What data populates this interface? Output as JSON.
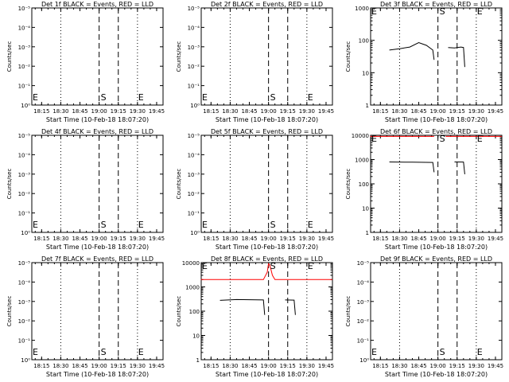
{
  "figure": {
    "xlabel": "Start Time (10-Feb-18 18:07:20)",
    "ylabel": "Counts/sec",
    "x_ticks": [
      "18:15",
      "18:30",
      "18:45",
      "19:00",
      "19:15",
      "19:30",
      "19:45"
    ],
    "line_labels": {
      "start": "S",
      "end": "E"
    },
    "colors": {
      "events": "#000000",
      "lld": "#ff0000",
      "background": "#ffffff"
    }
  },
  "chart_data": [
    {
      "type": "line",
      "title": "Det 1f BLACK = Events, RED = LLD",
      "xlabel": "Start Time (10-Feb-18 18:07:20)",
      "ylabel": "Counts/sec",
      "x_range": [
        "18:07",
        "19:50"
      ],
      "log_y": true,
      "empty": true,
      "yticks": [
        "10⁰",
        "10⁻¹",
        "10⁻²",
        "10⁻³",
        "10⁻⁴",
        "10⁻⁵"
      ],
      "markers": [
        "S",
        "E"
      ],
      "series": []
    },
    {
      "type": "line",
      "title": "Det 2f BLACK = Events, RED = LLD",
      "xlabel": "Start Time (10-Feb-18 18:07:20)",
      "ylabel": "Counts/sec",
      "x_range": [
        "18:07",
        "19:50"
      ],
      "log_y": true,
      "empty": true,
      "yticks": [
        "10⁰",
        "10⁻¹",
        "10⁻²",
        "10⁻³",
        "10⁻⁴",
        "10⁻⁵"
      ],
      "markers": [
        "S",
        "E"
      ],
      "series": []
    },
    {
      "type": "line",
      "title": "Det 3f BLACK = Events, RED = LLD",
      "xlabel": "Start Time (10-Feb-18 18:07:20)",
      "ylabel": "Counts/sec",
      "x_range": [
        "18:07",
        "19:50"
      ],
      "log_y": true,
      "ylim": [
        1,
        1000
      ],
      "empty": false,
      "yticks": [
        "1",
        "10",
        "100",
        "1000"
      ],
      "markers": [
        "S",
        "E"
      ],
      "series": [
        {
          "color": "#000000",
          "points": [
            [
              "18:22",
              50
            ],
            [
              "18:30",
              55
            ],
            [
              "18:38",
              62
            ],
            [
              "18:45",
              85
            ],
            [
              "18:51",
              70
            ],
            [
              "18:56",
              50
            ],
            [
              "18:57",
              25
            ]
          ]
        },
        {
          "color": "#000000",
          "points": [
            [
              "19:08",
              60
            ],
            [
              "19:13",
              58
            ],
            [
              "19:18",
              62
            ],
            [
              "19:20",
              60
            ],
            [
              "19:21",
              15
            ]
          ]
        }
      ]
    },
    {
      "type": "line",
      "title": "Det 4f BLACK = Events, RED = LLD",
      "xlabel": "Start Time (10-Feb-18 18:07:20)",
      "ylabel": "Counts/sec",
      "x_range": [
        "18:07",
        "19:50"
      ],
      "log_y": true,
      "empty": true,
      "yticks": [
        "10⁰",
        "10⁻¹",
        "10⁻²",
        "10⁻³",
        "10⁻⁴",
        "10⁻⁵"
      ],
      "markers": [
        "S",
        "E"
      ],
      "series": []
    },
    {
      "type": "line",
      "title": "Det 5f BLACK = Events, RED = LLD",
      "xlabel": "Start Time (10-Feb-18 18:07:20)",
      "ylabel": "Counts/sec",
      "x_range": [
        "18:07",
        "19:50"
      ],
      "log_y": true,
      "empty": true,
      "yticks": [
        "10⁰",
        "10⁻¹",
        "10⁻²",
        "10⁻³",
        "10⁻⁴",
        "10⁻⁵"
      ],
      "markers": [
        "S",
        "E"
      ],
      "series": []
    },
    {
      "type": "line",
      "title": "Det 6f BLACK = Events, RED = LLD",
      "xlabel": "Start Time (10-Feb-18 18:07:20)",
      "ylabel": "Counts/sec",
      "x_range": [
        "18:07",
        "19:50"
      ],
      "log_y": true,
      "ylim": [
        1,
        10000
      ],
      "empty": false,
      "yticks": [
        "1",
        "10",
        "100",
        "1000",
        "10000"
      ],
      "markers": [
        "S",
        "E"
      ],
      "series": [
        {
          "color": "#ff0000",
          "points": [
            [
              "18:07",
              9000
            ],
            [
              "18:57",
              9000
            ]
          ]
        },
        {
          "color": "#ff0000",
          "points": [
            [
              "19:06",
              9000
            ],
            [
              "19:50",
              9000
            ]
          ]
        },
        {
          "color": "#000000",
          "points": [
            [
              "18:22",
              800
            ],
            [
              "18:40",
              780
            ],
            [
              "18:56",
              760
            ],
            [
              "18:57",
              300
            ]
          ]
        },
        {
          "color": "#000000",
          "points": [
            [
              "19:13",
              800
            ],
            [
              "19:20",
              790
            ],
            [
              "19:21",
              250
            ]
          ]
        }
      ]
    },
    {
      "type": "line",
      "title": "Det 7f BLACK = Events, RED = LLD",
      "xlabel": "Start Time (10-Feb-18 18:07:20)",
      "ylabel": "Counts/sec",
      "x_range": [
        "18:07",
        "19:50"
      ],
      "log_y": true,
      "empty": true,
      "yticks": [
        "10⁰",
        "10⁻¹",
        "10⁻²",
        "10⁻³",
        "10⁻⁴",
        "10⁻⁵"
      ],
      "markers": [
        "S",
        "E"
      ],
      "series": []
    },
    {
      "type": "line",
      "title": "Det 8f BLACK = Events, RED = LLD",
      "xlabel": "Start Time (10-Feb-18 18:07:20)",
      "ylabel": "Counts/sec",
      "x_range": [
        "18:07",
        "19:50"
      ],
      "log_y": true,
      "ylim": [
        1,
        10000
      ],
      "empty": false,
      "yticks": [
        "1",
        "10",
        "100",
        "1000",
        "10000"
      ],
      "markers": [
        "S",
        "E"
      ],
      "series": [
        {
          "color": "#ff0000",
          "points": [
            [
              "18:07",
              2000
            ],
            [
              "18:56",
              2000
            ],
            [
              "18:59",
              4000
            ],
            [
              "19:00",
              9000
            ],
            [
              "19:01",
              8000
            ],
            [
              "19:03",
              3000
            ],
            [
              "19:05",
              2000
            ],
            [
              "19:50",
              2000
            ]
          ]
        },
        {
          "color": "#000000",
          "points": [
            [
              "18:22",
              280
            ],
            [
              "18:35",
              300
            ],
            [
              "18:56",
              290
            ],
            [
              "18:57",
              70
            ]
          ]
        },
        {
          "color": "#000000",
          "points": [
            [
              "19:13",
              290
            ],
            [
              "19:20",
              285
            ],
            [
              "19:21",
              70
            ]
          ]
        }
      ]
    },
    {
      "type": "line",
      "title": "Det 9f BLACK = Events, RED = LLD",
      "xlabel": "Start Time (10-Feb-18 18:07:20)",
      "ylabel": "Counts/sec",
      "x_range": [
        "18:07",
        "19:50"
      ],
      "log_y": true,
      "empty": true,
      "yticks": [
        "10⁰",
        "10⁻¹",
        "10⁻²",
        "10⁻³",
        "10⁻⁴",
        "10⁻⁵"
      ],
      "markers": [
        "S",
        "E"
      ],
      "series": []
    }
  ]
}
